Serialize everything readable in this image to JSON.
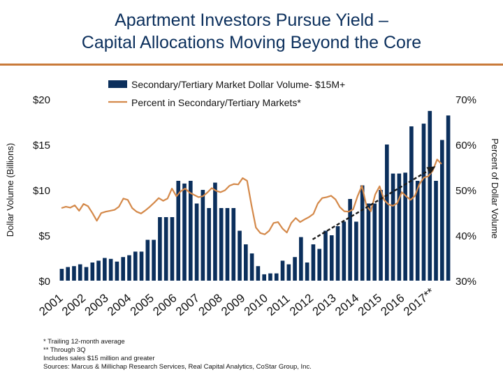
{
  "title_line1": "Apartment Investors Pursue Yield –",
  "title_line2": "Capital Allocations Moving Beyond the Core",
  "footnotes": [
    "* Trailing 12-month average",
    "** Through 3Q",
    "Includes sales $15 million and greater",
    "Sources: Marcus & Millichap Research Services, Real Capital Analytics, CoStar Group, Inc."
  ],
  "colors": {
    "bar": "#0b2f5c",
    "line": "#d4894a",
    "trend": "#1a1a1a",
    "rule": "#c97a3a"
  },
  "chart_data": {
    "type": "bar",
    "ylabel": "Dollar Volume (Billions)",
    "y2label": "Percent of Dollar Volume",
    "ylim": [
      0,
      20
    ],
    "y2lim": [
      30,
      70
    ],
    "yticks": [
      "$0",
      "$5",
      "$10",
      "$15",
      "$20"
    ],
    "y2ticks": [
      "30%",
      "40%",
      "50%",
      "60%",
      "70%"
    ],
    "year_labels": [
      "2001",
      "2002",
      "2003",
      "2004",
      "2005",
      "2006",
      "2007",
      "2008",
      "2009",
      "2010",
      "2011",
      "2012",
      "2013",
      "2014",
      "2015",
      "2016",
      "2017**"
    ],
    "legend": [
      {
        "label": "Secondary/Tertiary Market Dollar Volume- $15M+",
        "kind": "bar"
      },
      {
        "label": "Percent in Secondary/Tertiary Markets*",
        "kind": "line"
      }
    ],
    "series": [
      {
        "name": "Secondary/Tertiary Market Dollar Volume- $15M+",
        "kind": "bar",
        "values": [
          1.3,
          1.5,
          1.6,
          1.8,
          1.5,
          2.0,
          2.2,
          2.5,
          2.4,
          2.1,
          2.6,
          2.8,
          3.2,
          3.2,
          4.5,
          4.5,
          7.0,
          7.0,
          7.0,
          11.0,
          10.7,
          11.0,
          8.5,
          10.0,
          8.0,
          10.8,
          8.0,
          8.0,
          8.0,
          5.5,
          4.0,
          3.0,
          1.6,
          0.7,
          0.8,
          0.8,
          2.2,
          1.8,
          2.6,
          4.8,
          2.0,
          4.0,
          3.5,
          5.5,
          5.0,
          6.0,
          6.5,
          9.0,
          6.5,
          10.5,
          8.5,
          8.5,
          10.0,
          15.0,
          11.8,
          11.8,
          11.9,
          17.0,
          11.0,
          17.3,
          18.7,
          11.0,
          15.5,
          18.2
        ]
      },
      {
        "name": "Percent in Secondary/Tertiary Markets*",
        "kind": "line",
        "values": [
          46.0,
          46.3,
          46.1,
          46.6,
          45.4,
          46.9,
          46.4,
          44.9,
          43.2,
          44.9,
          45.2,
          45.4,
          45.6,
          46.3,
          48.1,
          47.8,
          46.0,
          45.2,
          44.8,
          45.5,
          46.3,
          47.2,
          48.2,
          47.6,
          48.1,
          50.3,
          48.6,
          49.7,
          50.3,
          49.4,
          48.9,
          48.4,
          48.6,
          49.4,
          50.4,
          49.8,
          49.5,
          49.9,
          50.9,
          51.3,
          51.2,
          52.6,
          52.0,
          46.6,
          41.7,
          40.5,
          40.2,
          41.0,
          42.7,
          42.9,
          41.5,
          40.6,
          42.7,
          43.8,
          42.9,
          43.5,
          44.0,
          44.7,
          47.0,
          48.2,
          48.4,
          48.7,
          47.9,
          46.2,
          45.3,
          45.2,
          45.7,
          48.6,
          50.9,
          46.5,
          45.3,
          49.0,
          50.8,
          47.8,
          46.8,
          46.5,
          47.1,
          49.5,
          48.6,
          47.8,
          48.7,
          51.3,
          52.7,
          53.0,
          54.2,
          56.7,
          55.7
        ]
      },
      {
        "name": "trend",
        "kind": "trend-arrow",
        "x": [
          2011.95,
          2017.35
        ],
        "y": [
          39.1,
          55.2
        ]
      }
    ]
  }
}
